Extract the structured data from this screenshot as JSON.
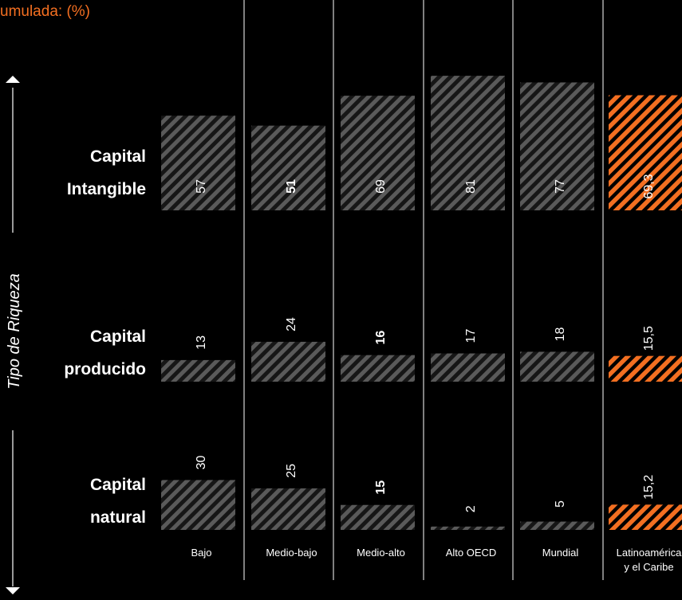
{
  "title": "umulada: (%)",
  "y_axis_label": "Tipo de Riqueza",
  "colors": {
    "background": "#000000",
    "bar_gray": "#5a5a5a",
    "highlight": "#f36f21",
    "text": "#ffffff"
  },
  "chart_data": {
    "type": "bar",
    "title": "umulada: (%)",
    "ylabel": "Tipo de Riqueza",
    "categories": [
      "Bajo",
      "Medio-bajo",
      "Medio-alto",
      "Alto OECD",
      "Mundial",
      "Latinoamérica y el Caribe"
    ],
    "category_lines": [
      [
        "Bajo"
      ],
      [
        "Medio-bajo"
      ],
      [
        "Medio-alto"
      ],
      [
        "Alto OECD"
      ],
      [
        "Mundial"
      ],
      [
        "Latinoamérica",
        "y el Caribe"
      ]
    ],
    "highlight_category": "Latinoamérica y el Caribe",
    "series": [
      {
        "name": "Capital Intangible",
        "lines": [
          "Capital",
          "Intangible"
        ],
        "values": [
          57,
          51,
          69,
          81,
          77,
          69.3
        ],
        "value_labels": [
          "57",
          "51",
          "69",
          "81",
          "77",
          "69,3"
        ],
        "bold_labels": [
          false,
          true,
          false,
          false,
          false,
          false
        ]
      },
      {
        "name": "Capital producido",
        "lines": [
          "Capital",
          "producido"
        ],
        "values": [
          13,
          24,
          16,
          17,
          18,
          15.5
        ],
        "value_labels": [
          "13",
          "24",
          "16",
          "17",
          "18",
          "15,5"
        ],
        "bold_labels": [
          false,
          false,
          true,
          false,
          false,
          false
        ]
      },
      {
        "name": "Capital natural",
        "lines": [
          "Capital",
          "natural"
        ],
        "values": [
          30,
          25,
          15,
          2,
          5,
          15.2
        ],
        "value_labels": [
          "30",
          "25",
          "15",
          "2",
          "5",
          "15,2"
        ],
        "bold_labels": [
          false,
          false,
          true,
          false,
          false,
          false
        ]
      }
    ]
  }
}
